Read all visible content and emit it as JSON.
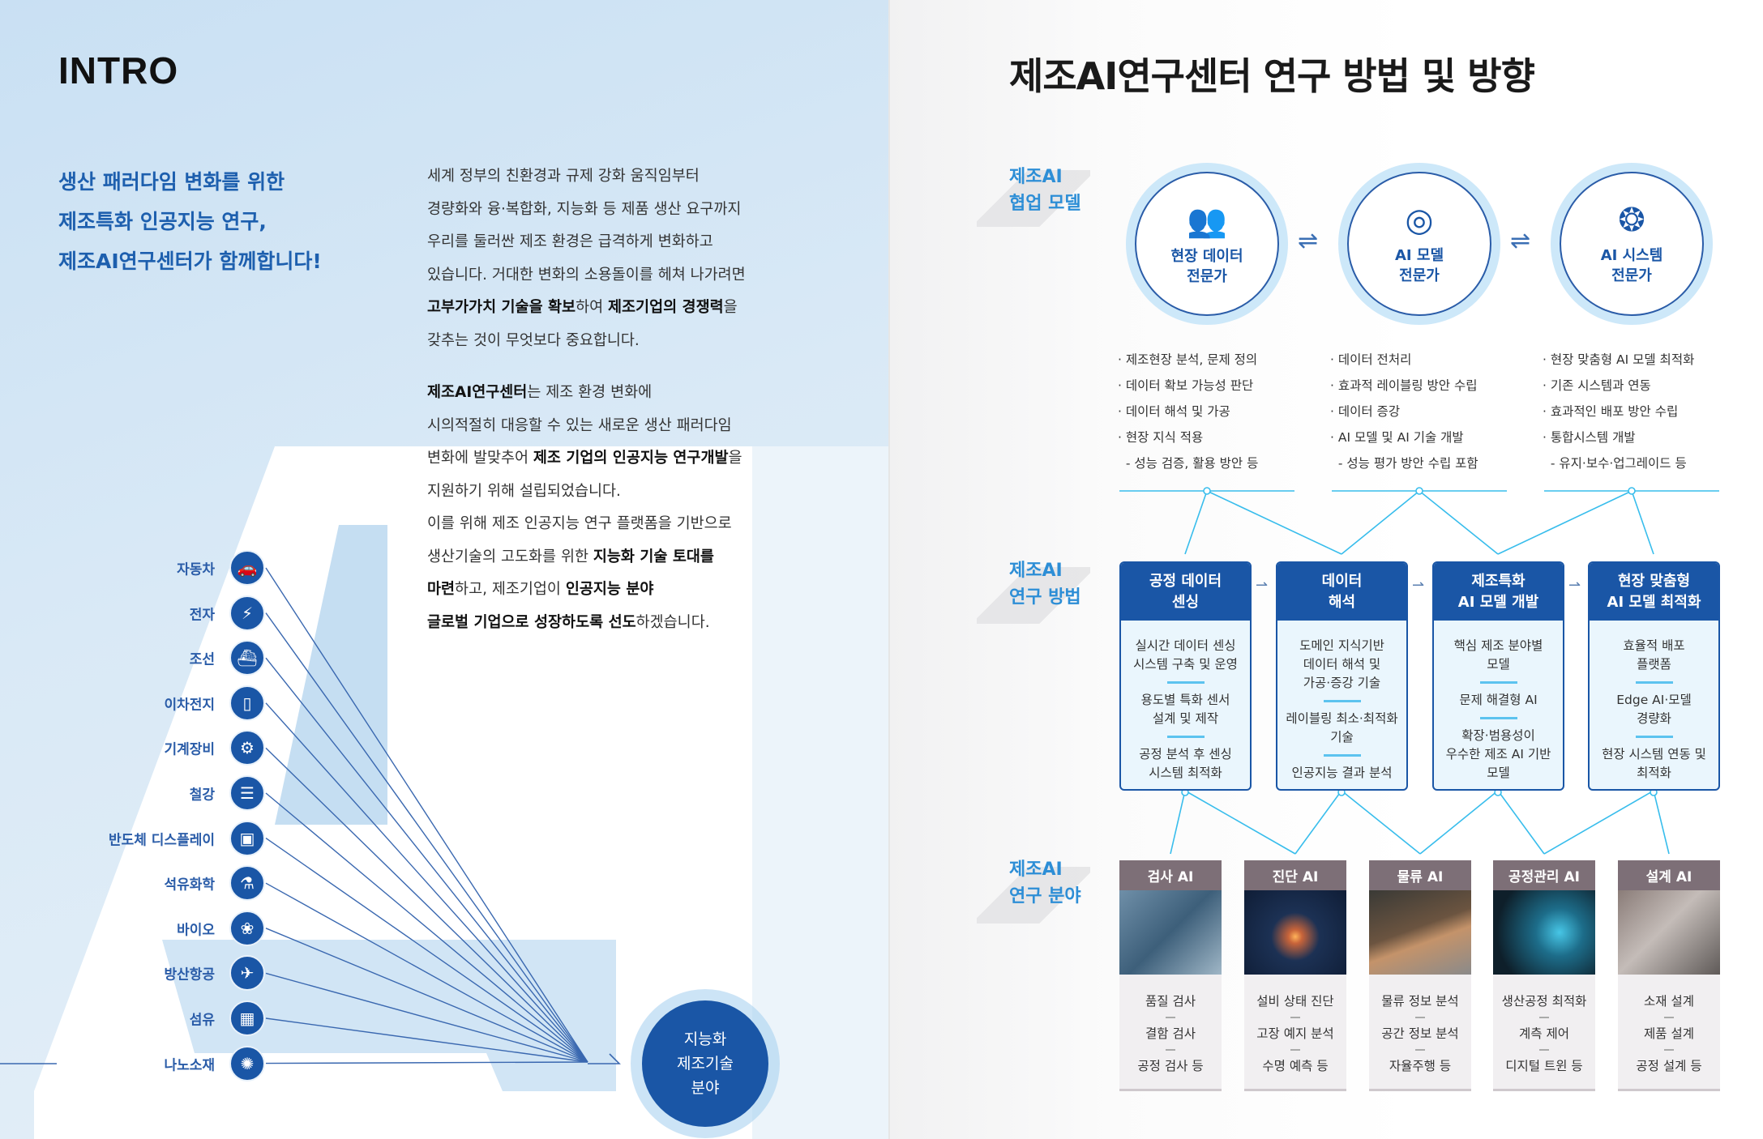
{
  "intro": {
    "title": "INTRO",
    "headline": [
      "생산 패러다임 변화를 위한",
      "제조특화 인공지능 연구,",
      "제조AI연구센터가 함께합니다!"
    ],
    "body": [
      [
        {
          "t": "세계 정부의 친환경과 규제 강화 움직임부터"
        }
      ],
      [
        {
          "t": "경량화와 융·복합화, 지능화 등 제품 생산 요구까지"
        }
      ],
      [
        {
          "t": "우리를 둘러싼 제조 환경은 급격하게 변화하고"
        }
      ],
      [
        {
          "t": "있습니다. 거대한 변화의 소용돌이를 헤쳐 나가려면"
        }
      ],
      [
        {
          "t": "고부가가치 기술을 확보",
          "b": true
        },
        {
          "t": "하여 "
        },
        {
          "t": "제조기업의 경쟁력",
          "b": true
        },
        {
          "t": "을"
        }
      ],
      [
        {
          "t": "갖추는 것이 무엇보다 중요합니다."
        }
      ],
      [],
      [
        {
          "t": "제조AI연구센터",
          "b": true
        },
        {
          "t": "는 제조 환경 변화에"
        }
      ],
      [
        {
          "t": "시의적절히 대응할 수 있는 새로운 생산 패러다임"
        }
      ],
      [
        {
          "t": "변화에 발맞추어 "
        },
        {
          "t": "제조 기업의 인공지능 연구개발",
          "b": true
        },
        {
          "t": "을"
        }
      ],
      [
        {
          "t": "지원하기 위해 설립되었습니다."
        }
      ],
      [
        {
          "t": "이를 위해 제조 인공지능 연구 플랫폼을 기반으로"
        }
      ],
      [
        {
          "t": "생산기술의 고도화를 위한 "
        },
        {
          "t": "지능화 기술 토대를",
          "b": true
        }
      ],
      [
        {
          "t": "마련",
          "b": true
        },
        {
          "t": "하고, 제조기업이 "
        },
        {
          "t": "인공지능 분야",
          "b": true
        }
      ],
      [
        {
          "t": "글로벌 기업으로 성장하도록 선도",
          "b": true
        },
        {
          "t": "하겠습니다."
        }
      ]
    ],
    "industries": [
      {
        "label": "자동차",
        "icon": "car-icon",
        "glyph": "🚗"
      },
      {
        "label": "전자",
        "icon": "electronics-icon",
        "glyph": "⚡"
      },
      {
        "label": "조선",
        "icon": "ship-icon",
        "glyph": "⛴"
      },
      {
        "label": "이차전지",
        "icon": "battery-icon",
        "glyph": "▯"
      },
      {
        "label": "기계장비",
        "icon": "machine-icon",
        "glyph": "⚙"
      },
      {
        "label": "철강",
        "icon": "steel-icon",
        "glyph": "☰"
      },
      {
        "label": "반도체 디스플레이",
        "icon": "chip-icon",
        "glyph": "▣"
      },
      {
        "label": "석유화학",
        "icon": "petrochemical-icon",
        "glyph": "⚗"
      },
      {
        "label": "바이오",
        "icon": "bio-icon",
        "glyph": "❀"
      },
      {
        "label": "방산항공",
        "icon": "airplane-icon",
        "glyph": "✈"
      },
      {
        "label": "섬유",
        "icon": "fiber-icon",
        "glyph": "▦"
      },
      {
        "label": "나노소재",
        "icon": "nano-icon",
        "glyph": "✺"
      }
    ],
    "hub": "지능화\n제조기술\n분야"
  },
  "research": {
    "title": "제조AI연구센터 연구 방법 및 방향",
    "colors": {
      "primary": "#1a56a6",
      "accent": "#2d8ed6",
      "field_header": "#7d6f77"
    },
    "collab_label": "제조AI\n협업 모델",
    "method_label": "제조AI\n연구 방법",
    "field_label": "제조AI\n연구 분야",
    "experts": [
      {
        "label": "현장 데이터\n전문가",
        "icon": "field-expert-icon",
        "glyph": "👥",
        "bullets": [
          "· 제조현장 분석, 문제 정의",
          "· 데이터 확보 가능성 판단",
          "· 데이터 해석 및 가공",
          "· 현장 지식 적용",
          "  - 성능 검증, 활용 방안 등"
        ]
      },
      {
        "label": "AI 모델\n전문가",
        "icon": "ai-model-icon",
        "glyph": "◎",
        "bullets": [
          "· 데이터 전처리",
          "· 효과적 레이블링 방안 수립",
          "· 데이터 증강",
          "· AI 모델 및 AI 기술 개발",
          "  - 성능 평가 방안 수립 포함"
        ]
      },
      {
        "label": "AI 시스템\n전문가",
        "icon": "ai-system-icon",
        "glyph": "❂",
        "bullets": [
          "· 현장 맞춤형 AI 모델 최적화",
          "· 기존 시스템과 연동",
          "· 효과적인 배포 방안 수립",
          "· 통합시스템 개발",
          "  - 유지·보수·업그레이드 등"
        ]
      }
    ],
    "swap_glyph": "⇌",
    "methods": [
      {
        "title": "공정 데이터\n센싱",
        "items": [
          "실시간 데이터 센싱\n시스템 구축 및 운영",
          "용도별 특화 센서\n설계 및 제작",
          "공정 분석 후 센싱\n시스템 최적화"
        ]
      },
      {
        "title": "데이터\n해석",
        "items": [
          "도메인 지식기반\n데이터 해석 및\n가공·증강 기술",
          "레이블링 최소·최적화\n기술",
          "인공지능 결과 분석"
        ]
      },
      {
        "title": "제조특화\nAI 모델 개발",
        "items": [
          "핵심 제조 분야별\n모델",
          "문제 해결형 AI",
          "확장·범용성이\n우수한 제조 AI 기반\n모델"
        ]
      },
      {
        "title": "현장 맞춤형\nAI 모델 최적화",
        "items": [
          "효율적 배포\n플랫폼",
          "Edge AI·모델\n경량화",
          "현장 시스템 연동 및\n최적화"
        ]
      }
    ],
    "fields": [
      {
        "title": "검사 AI",
        "items": [
          "품질 검사",
          "결함 검사",
          "공정 검사 등"
        ],
        "image": "linear-gradient(135deg,#6f8fa8,#3d5f7a 50%,#9fb6c6)"
      },
      {
        "title": "진단 AI",
        "items": [
          "설비 상태 진단",
          "고장 예지 분석",
          "수명 예측 등"
        ],
        "image": "radial-gradient(circle at 50% 55%,#ffb35a 0,#c8643a 10%,#1c3154 35%,#0f1d36 100%)"
      },
      {
        "title": "물류 AI",
        "items": [
          "물류 정보 분석",
          "공간 정보 분석",
          "자율주행 등"
        ],
        "image": "linear-gradient(160deg,#3a3a36,#6b5440 45%,#c4936a 60%,#8a8a8a)"
      },
      {
        "title": "공정관리 AI",
        "items": [
          "생산공정 최적화",
          "계측 제어",
          "디지털 트윈 등"
        ],
        "image": "radial-gradient(circle at 65% 50%,#47c6e6 0,#1d6d8a 30%,#0e1f2a 80%)"
      },
      {
        "title": "설계 AI",
        "items": [
          "소재 설계",
          "제품 설계",
          "공정 설계 등"
        ],
        "image": "linear-gradient(135deg,#8a7c78,#c4bcb8 45%,#5f5a58)"
      }
    ]
  }
}
